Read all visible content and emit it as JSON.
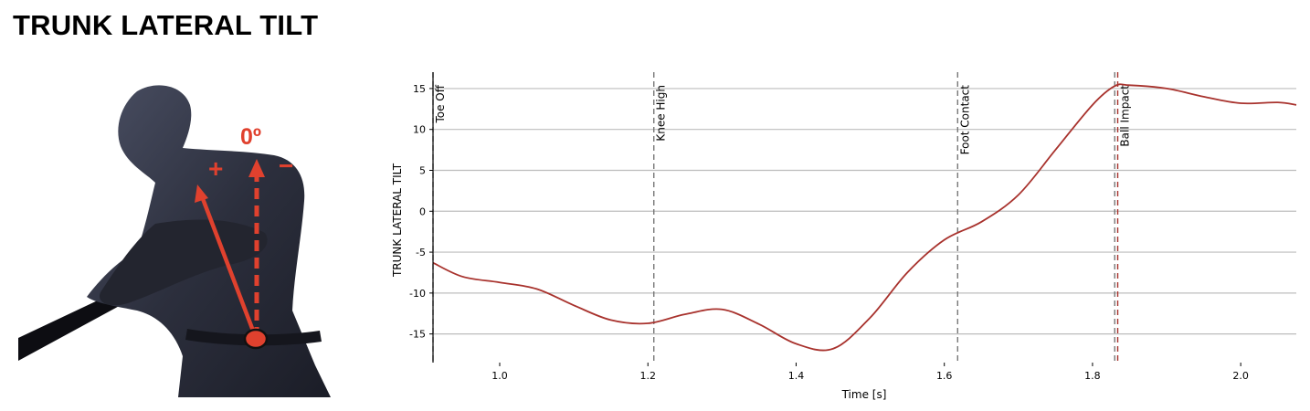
{
  "page": {
    "title": "TRUNK LATERAL TILT"
  },
  "illustration": {
    "angle_label": "0º",
    "plus_sign": "+",
    "minus_sign": "−",
    "colors": {
      "arrow": "#e0412e",
      "body": "#2b2e3b"
    }
  },
  "chart_data": {
    "type": "line",
    "title": "",
    "xlabel": "Time [s]",
    "ylabel": "TRUNK LATERAL TILT",
    "xlim": [
      0.91,
      2.075
    ],
    "ylim": [
      -18.5,
      17
    ],
    "x_ticks": [
      1.0,
      1.2,
      1.4,
      1.6,
      1.8,
      2.0
    ],
    "x_tick_labels": [
      "1.0",
      "1.2",
      "1.4",
      "1.6",
      "1.8",
      "2.0"
    ],
    "y_ticks": [
      -15,
      -10,
      -5,
      0,
      5,
      10,
      15
    ],
    "y_tick_labels": [
      "-15",
      "-10",
      "-5",
      "0",
      "5",
      "10",
      "15"
    ],
    "grid": "horizontal",
    "series": [
      {
        "color": "#a8322d",
        "x": [
          0.91,
          0.95,
          1.0,
          1.05,
          1.1,
          1.15,
          1.2,
          1.25,
          1.3,
          1.35,
          1.4,
          1.45,
          1.5,
          1.55,
          1.6,
          1.65,
          1.7,
          1.75,
          1.8,
          1.83,
          1.85,
          1.9,
          1.95,
          2.0,
          2.05,
          2.075
        ],
        "y": [
          -6.3,
          -8.0,
          -8.7,
          -9.5,
          -11.5,
          -13.3,
          -13.7,
          -12.6,
          -12.0,
          -13.8,
          -16.2,
          -16.8,
          -13.0,
          -7.5,
          -3.5,
          -1.3,
          2.0,
          7.5,
          13.0,
          15.3,
          15.4,
          15.0,
          14.0,
          13.2,
          13.3,
          13.0
        ]
      }
    ],
    "events": [
      {
        "x": 0.91,
        "label": "Toe Off",
        "color": "#777777",
        "style": "dashed"
      },
      {
        "x": 1.208,
        "label": "Knee High",
        "color": "#777777",
        "style": "dashed"
      },
      {
        "x": 1.618,
        "label": "Foot Contact",
        "color": "#777777",
        "style": "dashed"
      },
      {
        "x": 1.83,
        "label": "",
        "color": "#777777",
        "style": "dashed"
      },
      {
        "x": 1.834,
        "label": "Ball Impact",
        "color": "#a8322d",
        "style": "dashed"
      }
    ]
  }
}
